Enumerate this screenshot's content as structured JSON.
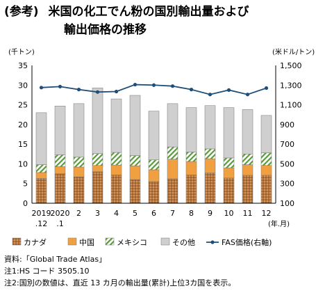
{
  "title_prefix": "(参考)",
  "title_line1": "米国の化工でん粉の国別輸出量および",
  "title_line2": "輸出価格の推移",
  "chart_data": {
    "type": "bar",
    "stacked": true,
    "left_axis_unit": "(千トン)",
    "right_axis_unit": "(米ドル/トン)",
    "x_unit": "(年.月)",
    "categories": [
      [
        "2019",
        ".12"
      ],
      [
        "2020",
        ".1"
      ],
      [
        "2",
        ""
      ],
      [
        "3",
        ""
      ],
      [
        "4",
        ""
      ],
      [
        "5",
        ""
      ],
      [
        "6",
        ""
      ],
      [
        "7",
        ""
      ],
      [
        "8",
        ""
      ],
      [
        "9",
        ""
      ],
      [
        "10",
        ""
      ],
      [
        "11",
        ""
      ],
      [
        "12",
        ""
      ]
    ],
    "ylim": [
      0,
      35
    ],
    "yticks": [
      "0",
      "5",
      "10",
      "15",
      "20",
      "25",
      "30",
      "35"
    ],
    "y2lim": [
      100,
      1500
    ],
    "y2ticks": [
      "100",
      "300",
      "500",
      "700",
      "900",
      "1,100",
      "1,300",
      "1,500"
    ],
    "series": [
      {
        "name": "カナダ",
        "color": "#b5733a",
        "pattern": "dots",
        "values": [
          6.3,
          7.5,
          6.7,
          8.0,
          7.2,
          6.0,
          5.5,
          6.2,
          7.2,
          7.7,
          6.4,
          7.1,
          7.1
        ]
      },
      {
        "name": "中国",
        "color": "#f0a040",
        "pattern": "solid",
        "values": [
          1.5,
          1.8,
          2.5,
          1.6,
          2.5,
          3.5,
          3.0,
          5.0,
          3.4,
          3.6,
          2.6,
          2.7,
          2.5
        ]
      },
      {
        "name": "メキシコ",
        "color": "#5a9a3a",
        "pattern": "hatch",
        "values": [
          2.0,
          3.0,
          2.5,
          3.0,
          3.2,
          2.6,
          2.5,
          3.1,
          2.4,
          2.5,
          2.5,
          2.7,
          3.2
        ]
      },
      {
        "name": "その他",
        "color": "#cfcfcf",
        "pattern": "solid",
        "values": [
          13.2,
          12.4,
          13.6,
          16.7,
          13.6,
          15.3,
          12.4,
          11.0,
          11.3,
          11.0,
          12.8,
          11.3,
          9.5
        ]
      },
      {
        "name": "FAS価格(右軸)",
        "color": "#1f4e79",
        "type": "line",
        "axis": "right",
        "values": [
          1275,
          1285,
          1255,
          1230,
          1235,
          1305,
          1300,
          1290,
          1255,
          1205,
          1250,
          1205,
          1270
        ]
      }
    ]
  },
  "notes": [
    "資料:「Global Trade Atlas」",
    "注1:HS コード 3505.10",
    "注2:国別の数値は、直近 13 カ月の輸出量(累計)上位3カ国を表示。"
  ]
}
